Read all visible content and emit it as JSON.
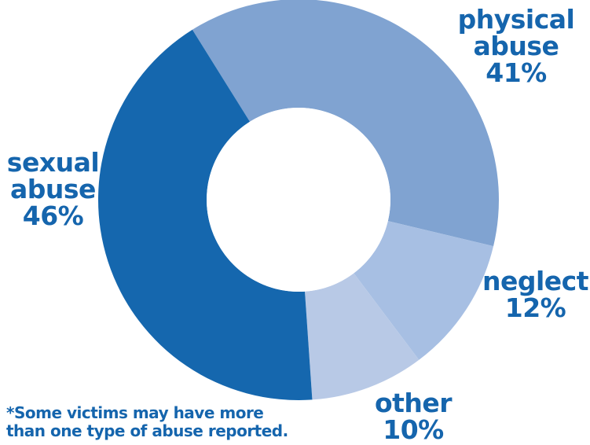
{
  "chart_data": {
    "type": "pie",
    "series": [
      {
        "name": "physical abuse",
        "value": 41,
        "value_label": "41%",
        "color": "#80a3d1"
      },
      {
        "name": "neglect",
        "value": 12,
        "value_label": "12%",
        "color": "#a7bfe3"
      },
      {
        "name": "other",
        "value": 10,
        "value_label": "10%",
        "color": "#b8c9e6"
      },
      {
        "name": "sexual abuse",
        "value": 46,
        "value_label": "46%",
        "color": "#1567ae"
      }
    ],
    "donut": true
  },
  "labels": {
    "physical": [
      "physical",
      "abuse",
      "41%"
    ],
    "sexual": [
      "sexual",
      "abuse",
      "46%"
    ],
    "neglect": [
      "neglect",
      "12%"
    ],
    "other": [
      "other",
      "10%"
    ]
  },
  "footnote": {
    "line1": "*Some victims may have more",
    "line2": "than one type of abuse reported."
  },
  "colors": {
    "text": "#1565ad",
    "background": "#ffffff"
  }
}
